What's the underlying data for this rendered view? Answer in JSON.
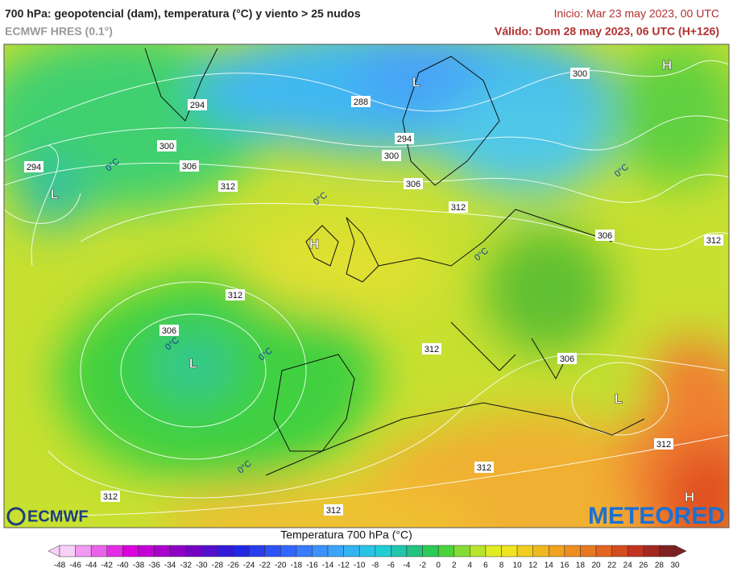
{
  "header": {
    "title": "700 hPa: geopotencial (dam), temperatura (°C) y viento > 25 nudos",
    "model": "ECMWF HRES (0.1°)",
    "init": "Inicio: Mar 23 may 2023, 00 UTC",
    "valid": "Válido: Dom 28 may 2023, 06 UTC (H+126)"
  },
  "map": {
    "pressure_centers": [
      "H",
      "L",
      "L",
      "H",
      "L",
      "L",
      "H"
    ],
    "contour_labels": [
      "300",
      "294",
      "288",
      "294",
      "300",
      "300",
      "306",
      "306",
      "312",
      "312",
      "294",
      "306",
      "312",
      "312",
      "306",
      "312",
      "306",
      "312",
      "312",
      "312",
      "312"
    ],
    "isotherm_labels": [
      "0°C",
      "0°C",
      "0°C",
      "0°C",
      "0°C",
      "0°C",
      "0°C"
    ]
  },
  "logos": {
    "left": "ECMWF",
    "right": "METEORED"
  },
  "colorbar": {
    "title": "Temperatura 700 hPa (°C)",
    "ticks": [
      -48,
      -46,
      -44,
      -42,
      -40,
      -38,
      -36,
      -34,
      -32,
      -30,
      -28,
      -26,
      -24,
      -22,
      -20,
      -18,
      -16,
      -14,
      -12,
      -10,
      -8,
      -6,
      -4,
      -2,
      0,
      2,
      4,
      6,
      8,
      10,
      12,
      14,
      16,
      18,
      20,
      22,
      24,
      26,
      28,
      30
    ]
  }
}
